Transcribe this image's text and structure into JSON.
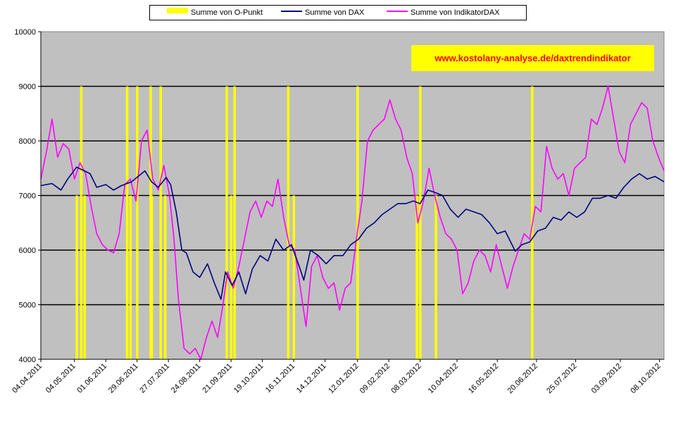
{
  "chart_data": {
    "type": "line",
    "title": "",
    "xlabel": "",
    "ylabel": "",
    "ylim": [
      4000,
      10000
    ],
    "yticks": [
      4000,
      5000,
      6000,
      7000,
      8000,
      9000,
      10000
    ],
    "x_start": "04.04.2011",
    "x_end": "12.10.2012",
    "xtick_labels": [
      "04.04.2011",
      "04.05.2011",
      "01.06.2011",
      "29.06.2011",
      "27.07.2011",
      "24.08.2011",
      "21.09.2011",
      "19.10.2011",
      "16.11.2011",
      "14.12.2011",
      "12.01.2012",
      "09.02.2012",
      "08.03.2012",
      "10.04.2012",
      "16.05.2012",
      "20.06.2012",
      "25.07.2012",
      "03.09.2012",
      "08.10.2012"
    ],
    "grid": "horizontal",
    "legend_position": "top",
    "url_annotation": "www.kostolany-analyse.de/daxtrendindikator",
    "series": [
      {
        "name": "Summe von O-Punkt",
        "color": "#ffff00",
        "style": "vertical-bars",
        "events": [
          {
            "x": "2011-05-06",
            "value": 7000
          },
          {
            "x": "2011-05-10",
            "value": 9000
          },
          {
            "x": "2011-05-13",
            "value": 7000
          },
          {
            "x": "2011-06-20",
            "value": 9000
          },
          {
            "x": "2011-06-23",
            "value": 7000
          },
          {
            "x": "2011-06-29",
            "value": 9000
          },
          {
            "x": "2011-07-11",
            "value": 9000
          },
          {
            "x": "2011-07-12",
            "value": 7000
          },
          {
            "x": "2011-07-20",
            "value": 9000
          },
          {
            "x": "2011-07-24",
            "value": 7000
          },
          {
            "x": "2011-09-17",
            "value": 9000
          },
          {
            "x": "2011-09-21",
            "value": 7000
          },
          {
            "x": "2011-09-24",
            "value": 9000
          },
          {
            "x": "2011-11-11",
            "value": 9000
          },
          {
            "x": "2011-11-16",
            "value": 7000
          },
          {
            "x": "2012-01-12",
            "value": 9000
          },
          {
            "x": "2012-03-05",
            "value": 7000
          },
          {
            "x": "2012-03-08",
            "value": 9000
          },
          {
            "x": "2012-03-22",
            "value": 7000
          },
          {
            "x": "2012-06-16",
            "value": 9000
          }
        ]
      },
      {
        "name": "Summe von DAX",
        "color": "#000080",
        "points": [
          [
            "2011-04-04",
            7180
          ],
          [
            "2011-04-14",
            7220
          ],
          [
            "2011-04-22",
            7100
          ],
          [
            "2011-04-28",
            7300
          ],
          [
            "2011-05-06",
            7520
          ],
          [
            "2011-05-12",
            7460
          ],
          [
            "2011-05-18",
            7400
          ],
          [
            "2011-05-24",
            7150
          ],
          [
            "2011-06-01",
            7200
          ],
          [
            "2011-06-08",
            7100
          ],
          [
            "2011-06-15",
            7180
          ],
          [
            "2011-06-24",
            7250
          ],
          [
            "2011-06-30",
            7350
          ],
          [
            "2011-07-06",
            7450
          ],
          [
            "2011-07-12",
            7250
          ],
          [
            "2011-07-18",
            7150
          ],
          [
            "2011-07-25",
            7330
          ],
          [
            "2011-07-29",
            7200
          ],
          [
            "2011-08-03",
            6700
          ],
          [
            "2011-08-08",
            6000
          ],
          [
            "2011-08-12",
            5950
          ],
          [
            "2011-08-18",
            5600
          ],
          [
            "2011-08-24",
            5500
          ],
          [
            "2011-08-31",
            5750
          ],
          [
            "2011-09-06",
            5400
          ],
          [
            "2011-09-12",
            5100
          ],
          [
            "2011-09-16",
            5600
          ],
          [
            "2011-09-22",
            5350
          ],
          [
            "2011-09-28",
            5600
          ],
          [
            "2011-10-04",
            5200
          ],
          [
            "2011-10-10",
            5650
          ],
          [
            "2011-10-17",
            5900
          ],
          [
            "2011-10-24",
            5800
          ],
          [
            "2011-10-31",
            6200
          ],
          [
            "2011-11-07",
            6000
          ],
          [
            "2011-11-14",
            6100
          ],
          [
            "2011-11-21",
            5700
          ],
          [
            "2011-11-25",
            5450
          ],
          [
            "2011-12-01",
            6000
          ],
          [
            "2011-12-08",
            5900
          ],
          [
            "2011-12-15",
            5750
          ],
          [
            "2011-12-22",
            5900
          ],
          [
            "2011-12-30",
            5900
          ],
          [
            "2012-01-06",
            6100
          ],
          [
            "2012-01-13",
            6200
          ],
          [
            "2012-01-20",
            6400
          ],
          [
            "2012-01-27",
            6500
          ],
          [
            "2012-02-03",
            6650
          ],
          [
            "2012-02-10",
            6750
          ],
          [
            "2012-02-17",
            6850
          ],
          [
            "2012-02-24",
            6850
          ],
          [
            "2012-03-02",
            6900
          ],
          [
            "2012-03-08",
            6850
          ],
          [
            "2012-03-15",
            7100
          ],
          [
            "2012-03-22",
            7050
          ],
          [
            "2012-03-28",
            7000
          ],
          [
            "2012-04-04",
            6750
          ],
          [
            "2012-04-11",
            6600
          ],
          [
            "2012-04-18",
            6750
          ],
          [
            "2012-04-25",
            6700
          ],
          [
            "2012-05-02",
            6650
          ],
          [
            "2012-05-09",
            6500
          ],
          [
            "2012-05-16",
            6300
          ],
          [
            "2012-05-23",
            6350
          ],
          [
            "2012-06-01",
            5980
          ],
          [
            "2012-06-07",
            6100
          ],
          [
            "2012-06-14",
            6150
          ],
          [
            "2012-06-21",
            6350
          ],
          [
            "2012-06-28",
            6400
          ],
          [
            "2012-07-05",
            6600
          ],
          [
            "2012-07-12",
            6550
          ],
          [
            "2012-07-19",
            6700
          ],
          [
            "2012-07-26",
            6600
          ],
          [
            "2012-08-02",
            6700
          ],
          [
            "2012-08-09",
            6950
          ],
          [
            "2012-08-16",
            6950
          ],
          [
            "2012-08-23",
            7000
          ],
          [
            "2012-08-30",
            6950
          ],
          [
            "2012-09-06",
            7150
          ],
          [
            "2012-09-13",
            7300
          ],
          [
            "2012-09-20",
            7400
          ],
          [
            "2012-09-27",
            7300
          ],
          [
            "2012-10-04",
            7350
          ],
          [
            "2012-10-12",
            7250
          ]
        ]
      },
      {
        "name": "Summe von IndikatorDAX",
        "color": "#ff00ff",
        "points": [
          [
            "2011-04-04",
            7300
          ],
          [
            "2011-04-09",
            7800
          ],
          [
            "2011-04-14",
            8400
          ],
          [
            "2011-04-19",
            7700
          ],
          [
            "2011-04-24",
            7950
          ],
          [
            "2011-04-29",
            7850
          ],
          [
            "2011-05-04",
            7300
          ],
          [
            "2011-05-09",
            7600
          ],
          [
            "2011-05-14",
            7400
          ],
          [
            "2011-05-19",
            6800
          ],
          [
            "2011-05-24",
            6300
          ],
          [
            "2011-05-29",
            6100
          ],
          [
            "2011-06-03",
            6000
          ],
          [
            "2011-06-08",
            5950
          ],
          [
            "2011-06-13",
            6300
          ],
          [
            "2011-06-18",
            7200
          ],
          [
            "2011-06-23",
            7300
          ],
          [
            "2011-06-28",
            6900
          ],
          [
            "2011-07-03",
            8000
          ],
          [
            "2011-07-08",
            8200
          ],
          [
            "2011-07-13",
            7300
          ],
          [
            "2011-07-18",
            7100
          ],
          [
            "2011-07-23",
            7550
          ],
          [
            "2011-07-28",
            7000
          ],
          [
            "2011-08-01",
            6200
          ],
          [
            "2011-08-05",
            5100
          ],
          [
            "2011-08-10",
            4200
          ],
          [
            "2011-08-15",
            4100
          ],
          [
            "2011-08-20",
            4200
          ],
          [
            "2011-08-25",
            4000
          ],
          [
            "2011-08-30",
            4400
          ],
          [
            "2011-09-04",
            4700
          ],
          [
            "2011-09-09",
            4400
          ],
          [
            "2011-09-13",
            4900
          ],
          [
            "2011-09-18",
            5600
          ],
          [
            "2011-09-23",
            5300
          ],
          [
            "2011-09-28",
            5700
          ],
          [
            "2011-10-03",
            6200
          ],
          [
            "2011-10-08",
            6700
          ],
          [
            "2011-10-13",
            6900
          ],
          [
            "2011-10-18",
            6600
          ],
          [
            "2011-10-23",
            6900
          ],
          [
            "2011-10-28",
            6800
          ],
          [
            "2011-11-02",
            7300
          ],
          [
            "2011-11-07",
            6600
          ],
          [
            "2011-11-12",
            6100
          ],
          [
            "2011-11-17",
            6000
          ],
          [
            "2011-11-22",
            5300
          ],
          [
            "2011-11-27",
            4600
          ],
          [
            "2011-12-02",
            5700
          ],
          [
            "2011-12-07",
            5900
          ],
          [
            "2011-12-12",
            5500
          ],
          [
            "2011-12-17",
            5300
          ],
          [
            "2011-12-22",
            5400
          ],
          [
            "2011-12-27",
            4900
          ],
          [
            "2012-01-01",
            5300
          ],
          [
            "2012-01-06",
            5400
          ],
          [
            "2012-01-11",
            6200
          ],
          [
            "2012-01-16",
            6900
          ],
          [
            "2012-01-21",
            8000
          ],
          [
            "2012-01-26",
            8200
          ],
          [
            "2012-01-31",
            8300
          ],
          [
            "2012-02-05",
            8400
          ],
          [
            "2012-02-10",
            8750
          ],
          [
            "2012-02-15",
            8400
          ],
          [
            "2012-02-20",
            8200
          ],
          [
            "2012-02-25",
            7700
          ],
          [
            "2012-03-01",
            7400
          ],
          [
            "2012-03-06",
            6500
          ],
          [
            "2012-03-11",
            6900
          ],
          [
            "2012-03-16",
            7500
          ],
          [
            "2012-03-21",
            7000
          ],
          [
            "2012-03-26",
            6600
          ],
          [
            "2012-03-31",
            6300
          ],
          [
            "2012-04-05",
            6200
          ],
          [
            "2012-04-10",
            6000
          ],
          [
            "2012-04-15",
            5200
          ],
          [
            "2012-04-20",
            5400
          ],
          [
            "2012-04-25",
            5800
          ],
          [
            "2012-04-30",
            6000
          ],
          [
            "2012-05-05",
            5900
          ],
          [
            "2012-05-10",
            5600
          ],
          [
            "2012-05-15",
            6100
          ],
          [
            "2012-05-20",
            5700
          ],
          [
            "2012-05-25",
            5300
          ],
          [
            "2012-05-30",
            5700
          ],
          [
            "2012-06-04",
            6000
          ],
          [
            "2012-06-09",
            6300
          ],
          [
            "2012-06-14",
            6200
          ],
          [
            "2012-06-19",
            6800
          ],
          [
            "2012-06-24",
            6700
          ],
          [
            "2012-06-29",
            7900
          ],
          [
            "2012-07-04",
            7500
          ],
          [
            "2012-07-09",
            7300
          ],
          [
            "2012-07-14",
            7400
          ],
          [
            "2012-07-19",
            7000
          ],
          [
            "2012-07-24",
            7500
          ],
          [
            "2012-07-29",
            7600
          ],
          [
            "2012-08-03",
            7700
          ],
          [
            "2012-08-08",
            8400
          ],
          [
            "2012-08-13",
            8300
          ],
          [
            "2012-08-18",
            8600
          ],
          [
            "2012-08-23",
            9000
          ],
          [
            "2012-08-28",
            8400
          ],
          [
            "2012-09-02",
            7800
          ],
          [
            "2012-09-07",
            7600
          ],
          [
            "2012-09-12",
            8300
          ],
          [
            "2012-09-17",
            8500
          ],
          [
            "2012-09-22",
            8700
          ],
          [
            "2012-09-27",
            8600
          ],
          [
            "2012-10-02",
            8000
          ],
          [
            "2012-10-07",
            7700
          ],
          [
            "2012-10-12",
            7450
          ]
        ]
      }
    ]
  }
}
